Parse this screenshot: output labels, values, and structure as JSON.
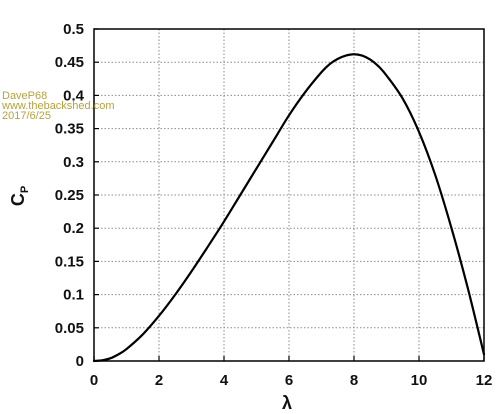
{
  "watermark": {
    "lines": [
      "DaveP68",
      "www.thebackshed.com",
      "2017/6/25"
    ]
  },
  "colors": {
    "curve": "#000000",
    "grid": "#8a8a8a",
    "frame": "#000000",
    "watermark": "#b5a33a"
  },
  "chart_data": {
    "type": "line",
    "title": "",
    "xlabel": "λ",
    "ylabel_main": "C",
    "ylabel_sub": "P",
    "xlim": [
      0,
      12
    ],
    "ylim": [
      0,
      0.5
    ],
    "x_ticks": [
      0,
      2,
      4,
      6,
      8,
      10,
      12
    ],
    "y_ticks": [
      0,
      0.05,
      0.1,
      0.15,
      0.2,
      0.25,
      0.3,
      0.35,
      0.4,
      0.45,
      0.5
    ],
    "x_tick_labels": [
      "0",
      "2",
      "4",
      "6",
      "8",
      "10",
      "12"
    ],
    "y_tick_labels": [
      "0",
      "0.05",
      "0.1",
      "0.15",
      "0.2",
      "0.25",
      "0.3",
      "0.35",
      "0.4",
      "0.45",
      "0.5"
    ],
    "grid": true,
    "grid_style": "dotted",
    "series": [
      {
        "x": [
          0,
          0.25,
          0.5,
          0.75,
          1,
          1.5,
          2,
          2.5,
          3,
          3.5,
          4,
          4.5,
          5,
          5.5,
          6,
          6.5,
          7,
          7.25,
          7.5,
          7.75,
          8,
          8.25,
          8.5,
          8.75,
          9,
          9.5,
          10,
          10.5,
          11,
          11.5,
          12
        ],
        "y": [
          0,
          0.001,
          0.004,
          0.01,
          0.018,
          0.04,
          0.068,
          0.1,
          0.135,
          0.172,
          0.21,
          0.25,
          0.29,
          0.33,
          0.37,
          0.405,
          0.435,
          0.447,
          0.455,
          0.46,
          0.462,
          0.46,
          0.454,
          0.444,
          0.43,
          0.395,
          0.345,
          0.28,
          0.2,
          0.11,
          0.01
        ]
      }
    ]
  }
}
